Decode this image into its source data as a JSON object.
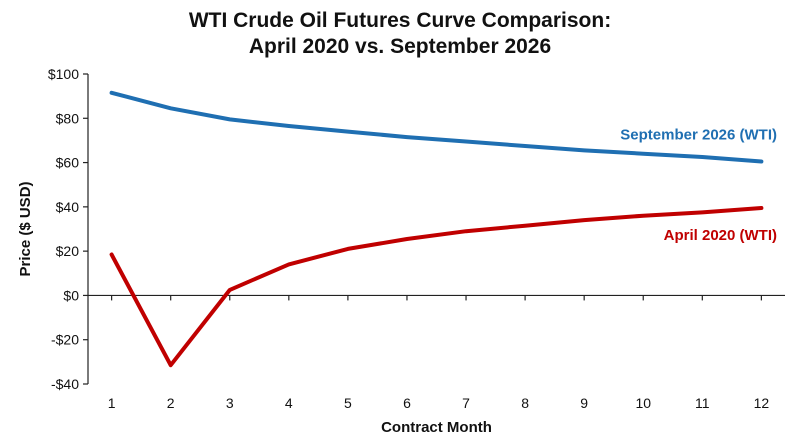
{
  "chart_data": {
    "type": "line",
    "title_lines": [
      "WTI Crude Oil Futures Curve Comparison:",
      "April 2020 vs. September 2026"
    ],
    "xlabel": "Contract Month",
    "ylabel": "Price ($ USD)",
    "x": [
      1,
      2,
      3,
      4,
      5,
      6,
      7,
      8,
      9,
      10,
      11,
      12
    ],
    "x_tick_labels": [
      "1",
      "2",
      "3",
      "4",
      "5",
      "6",
      "7",
      "8",
      "9",
      "10",
      "11",
      "12"
    ],
    "xlim": [
      0.6,
      12.4
    ],
    "ylim": [
      -40,
      100
    ],
    "y_ticks": [
      -40,
      -20,
      0,
      20,
      40,
      60,
      80,
      100
    ],
    "y_tick_labels": [
      "-$40",
      "-$20",
      "$0",
      "$20",
      "$40",
      "$60",
      "$80",
      "$100"
    ],
    "grid": false,
    "legend": "inline labels at right",
    "series": [
      {
        "name": "September 2026 (WTI)",
        "color": "#1f6fb2",
        "values": [
          91.5,
          84.5,
          79.5,
          76.5,
          74,
          71.5,
          69.5,
          67.5,
          65.5,
          64,
          62.5,
          60.5
        ]
      },
      {
        "name": "April 2020 (WTI)",
        "color": "#c00000",
        "values": [
          18.5,
          -31.5,
          2.5,
          14,
          21,
          25.5,
          29,
          31.5,
          34,
          36,
          37.5,
          39.5
        ]
      }
    ]
  }
}
